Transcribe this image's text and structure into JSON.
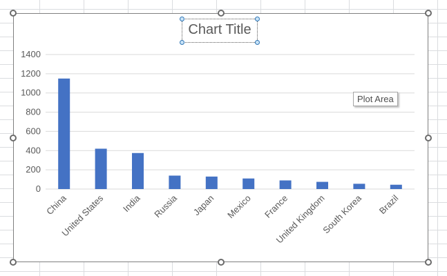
{
  "chart_data": {
    "type": "bar",
    "title": "Chart Title",
    "categories": [
      "China",
      "United States",
      "India",
      "Russia",
      "Japan",
      "Mexico",
      "France",
      "United Kingdom",
      "South Korea",
      "Brazil"
    ],
    "values": [
      1150,
      420,
      375,
      140,
      130,
      110,
      90,
      75,
      55,
      45
    ],
    "ylim": [
      0,
      1400
    ],
    "yticks": [
      0,
      200,
      400,
      600,
      800,
      1000,
      1200,
      1400
    ],
    "grid": true,
    "colors": {
      "bar": "#4472c4",
      "grid": "#d9d9d9",
      "tick_label": "#595959"
    }
  },
  "tooltip": {
    "text": "Plot Area"
  }
}
